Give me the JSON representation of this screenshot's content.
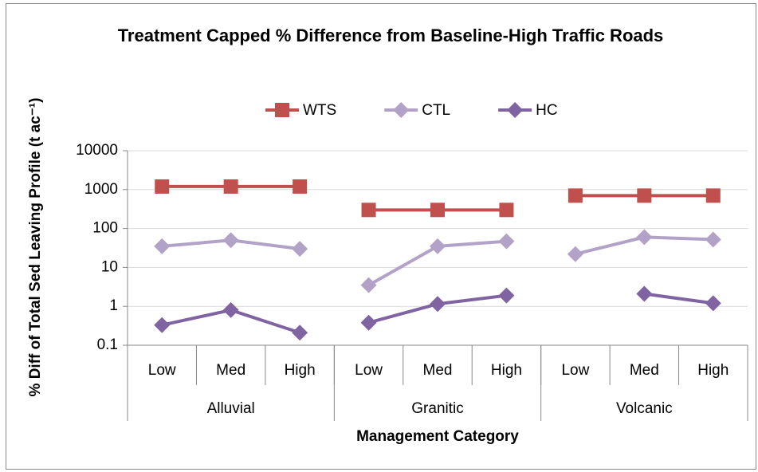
{
  "chart_data": {
    "type": "line",
    "title": "Treatment Capped % Difference from Baseline-High Traffic Roads",
    "x_label": "Management Category",
    "y_label": "% Diff of Total Sed Leaving Profile (t ac⁻¹)",
    "categories": [
      "Low",
      "Med",
      "High",
      "Low",
      "Med",
      "High",
      "Low",
      "Med",
      "High"
    ],
    "groups": [
      "Alluvial",
      "Granitic",
      "Volcanic"
    ],
    "series": [
      {
        "name": "WTS",
        "color": "#c0504d",
        "marker": "square",
        "values": [
          1200,
          1200,
          1200,
          300,
          300,
          300,
          700,
          700,
          700
        ]
      },
      {
        "name": "CTL",
        "color": "#b3a2c7",
        "marker": "diamond",
        "values": [
          35,
          50,
          30,
          3.5,
          35,
          47,
          22,
          60,
          52
        ]
      },
      {
        "name": "HC",
        "color": "#8064a2",
        "marker": "diamond",
        "values": [
          0.33,
          0.8,
          0.21,
          0.38,
          1.15,
          1.9,
          null,
          2.1,
          1.2
        ]
      }
    ],
    "ylim": [
      0.1,
      10000
    ],
    "yticks": [
      0.1,
      1,
      10,
      100,
      1000,
      10000
    ],
    "log_y": true,
    "grid": true,
    "legend": "top"
  }
}
